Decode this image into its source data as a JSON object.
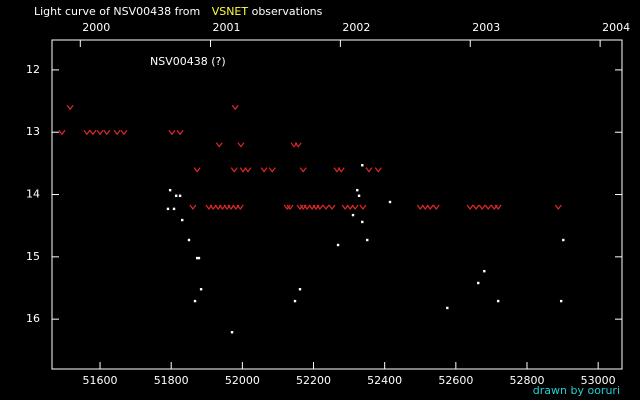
{
  "chart_data": {
    "type": "scatter",
    "title_parts": [
      "Light curve of NSV00438 from",
      "VSNET",
      "observations"
    ],
    "title_colors": [
      "#ffffff",
      "#ffff40",
      "#ffffff"
    ],
    "annotation": "NSV00438 (?)",
    "footer": "drawn by ooruri",
    "xlim": [
      51465,
      53067
    ],
    "ylim": [
      16.8,
      11.52
    ],
    "xticks": [
      51600,
      51800,
      52000,
      52200,
      52400,
      52600,
      52800,
      53000
    ],
    "x2ticks": [
      {
        "value": 51544.5,
        "label": "2000"
      },
      {
        "value": 51910.5,
        "label": "2001"
      },
      {
        "value": 52275.5,
        "label": "2002"
      },
      {
        "value": 52640.5,
        "label": "2003"
      },
      {
        "value": 53005.5,
        "label": "2004"
      }
    ],
    "yticks": [
      12,
      13,
      14,
      15,
      16
    ],
    "series": [
      {
        "marker": "v",
        "color": "#e02828",
        "x": [
          51493,
          51516,
          51563,
          51580,
          51600,
          51619,
          51648,
          51667,
          51802,
          51825,
          51873,
          51861,
          51935,
          51906,
          51918,
          51932,
          51944,
          51957,
          51968,
          51982,
          51994,
          51980,
          51977,
          51996,
          52002,
          52016,
          52061,
          52084,
          52126,
          52134,
          52145,
          52157,
          52171,
          52162,
          52171,
          52182,
          52196,
          52207,
          52218,
          52235,
          52252,
          52266,
          52278,
          52289,
          52303,
          52317,
          52339,
          52356,
          52382,
          52500,
          52514,
          52528,
          52545,
          52640,
          52657,
          52674,
          52691,
          52708,
          52719,
          52888
        ],
        "values": [
          13.0,
          12.6,
          13.0,
          13.0,
          13.0,
          13.0,
          13.0,
          13.0,
          13.0,
          13.0,
          13.6,
          14.2,
          13.2,
          14.2,
          14.2,
          14.2,
          14.2,
          14.2,
          14.2,
          14.2,
          14.2,
          12.6,
          13.6,
          13.2,
          13.6,
          13.6,
          13.6,
          13.6,
          14.2,
          14.2,
          13.2,
          13.2,
          13.6,
          14.2,
          14.2,
          14.2,
          14.2,
          14.2,
          14.2,
          14.2,
          14.2,
          13.6,
          13.6,
          14.2,
          14.2,
          14.2,
          14.2,
          13.6,
          13.6,
          14.2,
          14.2,
          14.2,
          14.2,
          14.2,
          14.2,
          14.2,
          14.2,
          14.2,
          14.2,
          14.2
        ]
      },
      {
        "marker": "dot",
        "color": "#ffffff",
        "x": [
          51797,
          51791,
          51814,
          51825,
          51808,
          51831,
          51850,
          51873,
          51878,
          51867,
          51884,
          51971,
          52148,
          52162,
          52269,
          52311,
          52323,
          52328,
          52337,
          52337,
          52351,
          52415,
          52576,
          52663,
          52680,
          52719,
          52896,
          52902
        ],
        "values": [
          13.93,
          14.23,
          14.02,
          14.02,
          14.23,
          14.41,
          14.73,
          15.02,
          15.02,
          15.71,
          15.52,
          16.21,
          15.71,
          15.52,
          14.81,
          14.33,
          13.93,
          14.02,
          13.53,
          14.44,
          14.73,
          14.12,
          15.82,
          15.42,
          15.23,
          15.71,
          15.71,
          14.73
        ]
      }
    ]
  }
}
